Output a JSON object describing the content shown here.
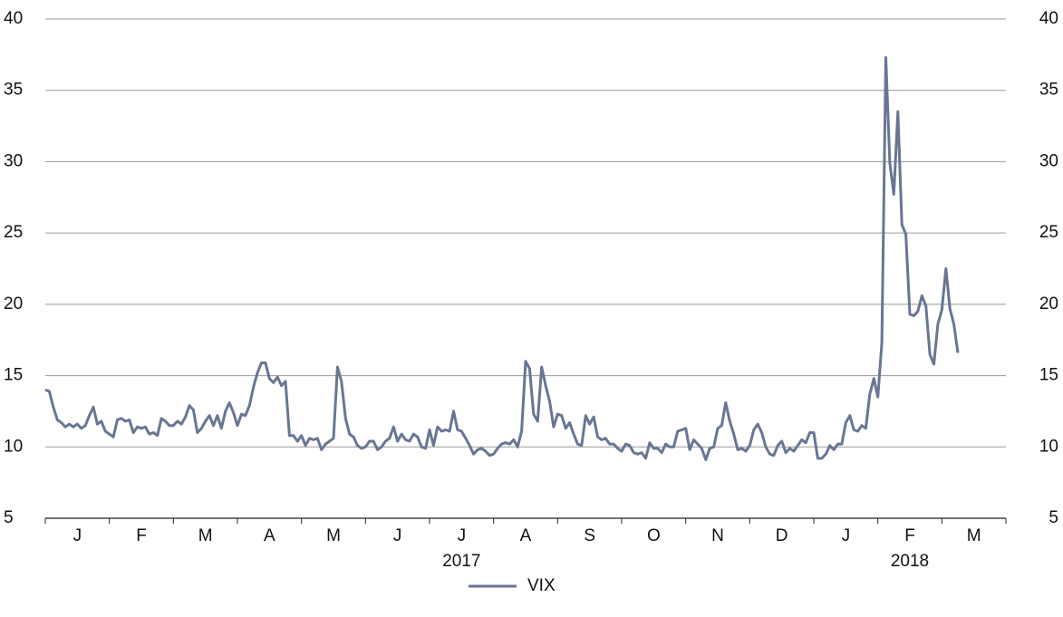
{
  "chart_data": {
    "type": "line",
    "months": [
      "J",
      "F",
      "M",
      "A",
      "M",
      "J",
      "J",
      "A",
      "S",
      "O",
      "N",
      "D",
      "J",
      "F",
      "M"
    ],
    "years": [
      {
        "label": "2017",
        "month": 6
      },
      {
        "label": "2018",
        "month": 13
      }
    ],
    "series": [
      {
        "name": "VIX",
        "color": "#687693",
        "values": [
          14.0,
          13.9,
          12.8,
          11.9,
          11.7,
          11.4,
          11.6,
          11.4,
          11.6,
          11.3,
          11.5,
          12.2,
          12.8,
          11.6,
          11.8,
          11.1,
          10.9,
          10.7,
          11.9,
          12.0,
          11.8,
          11.9,
          11.0,
          11.4,
          11.3,
          11.4,
          10.9,
          11.0,
          10.8,
          12.0,
          11.8,
          11.5,
          11.5,
          11.8,
          11.6,
          12.1,
          12.9,
          12.6,
          11.0,
          11.3,
          11.8,
          12.2,
          11.5,
          12.2,
          11.3,
          12.5,
          13.1,
          12.4,
          11.5,
          12.3,
          12.2,
          12.9,
          14.2,
          15.2,
          15.9,
          15.9,
          14.8,
          14.5,
          14.9,
          14.3,
          14.6,
          10.8,
          10.8,
          10.4,
          10.8,
          10.1,
          10.6,
          10.5,
          10.6,
          9.8,
          10.2,
          10.4,
          10.6,
          15.6,
          14.6,
          12.0,
          10.9,
          10.7,
          10.1,
          9.9,
          10.0,
          10.4,
          10.4,
          9.8,
          10.0,
          10.4,
          10.6,
          11.4,
          10.4,
          10.9,
          10.5,
          10.4,
          10.9,
          10.7,
          10.0,
          9.9,
          11.2,
          10.1,
          11.4,
          11.1,
          11.2,
          11.1,
          12.5,
          11.2,
          11.1,
          10.6,
          10.1,
          9.5,
          9.8,
          9.9,
          9.7,
          9.4,
          9.5,
          9.9,
          10.2,
          10.3,
          10.2,
          10.5,
          10.0,
          11.1,
          16.0,
          15.5,
          12.3,
          11.8,
          15.6,
          14.3,
          13.2,
          11.4,
          12.3,
          12.2,
          11.3,
          11.7,
          10.9,
          10.2,
          10.1,
          12.2,
          11.6,
          12.1,
          10.7,
          10.5,
          10.6,
          10.2,
          10.2,
          9.9,
          9.7,
          10.2,
          10.1,
          9.6,
          9.5,
          9.6,
          9.2,
          10.3,
          9.9,
          9.9,
          9.6,
          10.2,
          10.0,
          10.0,
          11.1,
          11.2,
          11.3,
          9.8,
          10.5,
          10.2,
          9.9,
          9.1,
          9.9,
          10.0,
          11.3,
          11.5,
          13.1,
          11.8,
          10.9,
          9.8,
          9.9,
          9.7,
          10.1,
          11.2,
          11.6,
          11.0,
          10.0,
          9.5,
          9.4,
          10.1,
          10.4,
          9.6,
          9.9,
          9.7,
          10.1,
          10.5,
          10.3,
          11.0,
          11.0,
          9.2,
          9.2,
          9.5,
          10.1,
          9.8,
          10.2,
          10.2,
          11.7,
          12.2,
          11.2,
          11.1,
          11.5,
          11.3,
          13.7,
          14.8,
          13.5,
          17.3,
          37.3,
          29.9,
          27.7,
          33.5,
          25.6,
          24.9,
          19.3,
          19.2,
          19.5,
          20.6,
          19.9,
          16.5,
          15.8,
          18.6,
          19.6,
          22.5,
          19.7,
          18.6,
          16.6
        ]
      }
    ],
    "ylim": [
      5,
      40
    ],
    "yticks": [
      5,
      10,
      15,
      20,
      25,
      30,
      35,
      40
    ],
    "y2lim": [
      5,
      40
    ],
    "y2ticks": [
      5,
      10,
      15,
      20,
      25,
      30,
      35,
      40
    ],
    "grid": true
  }
}
